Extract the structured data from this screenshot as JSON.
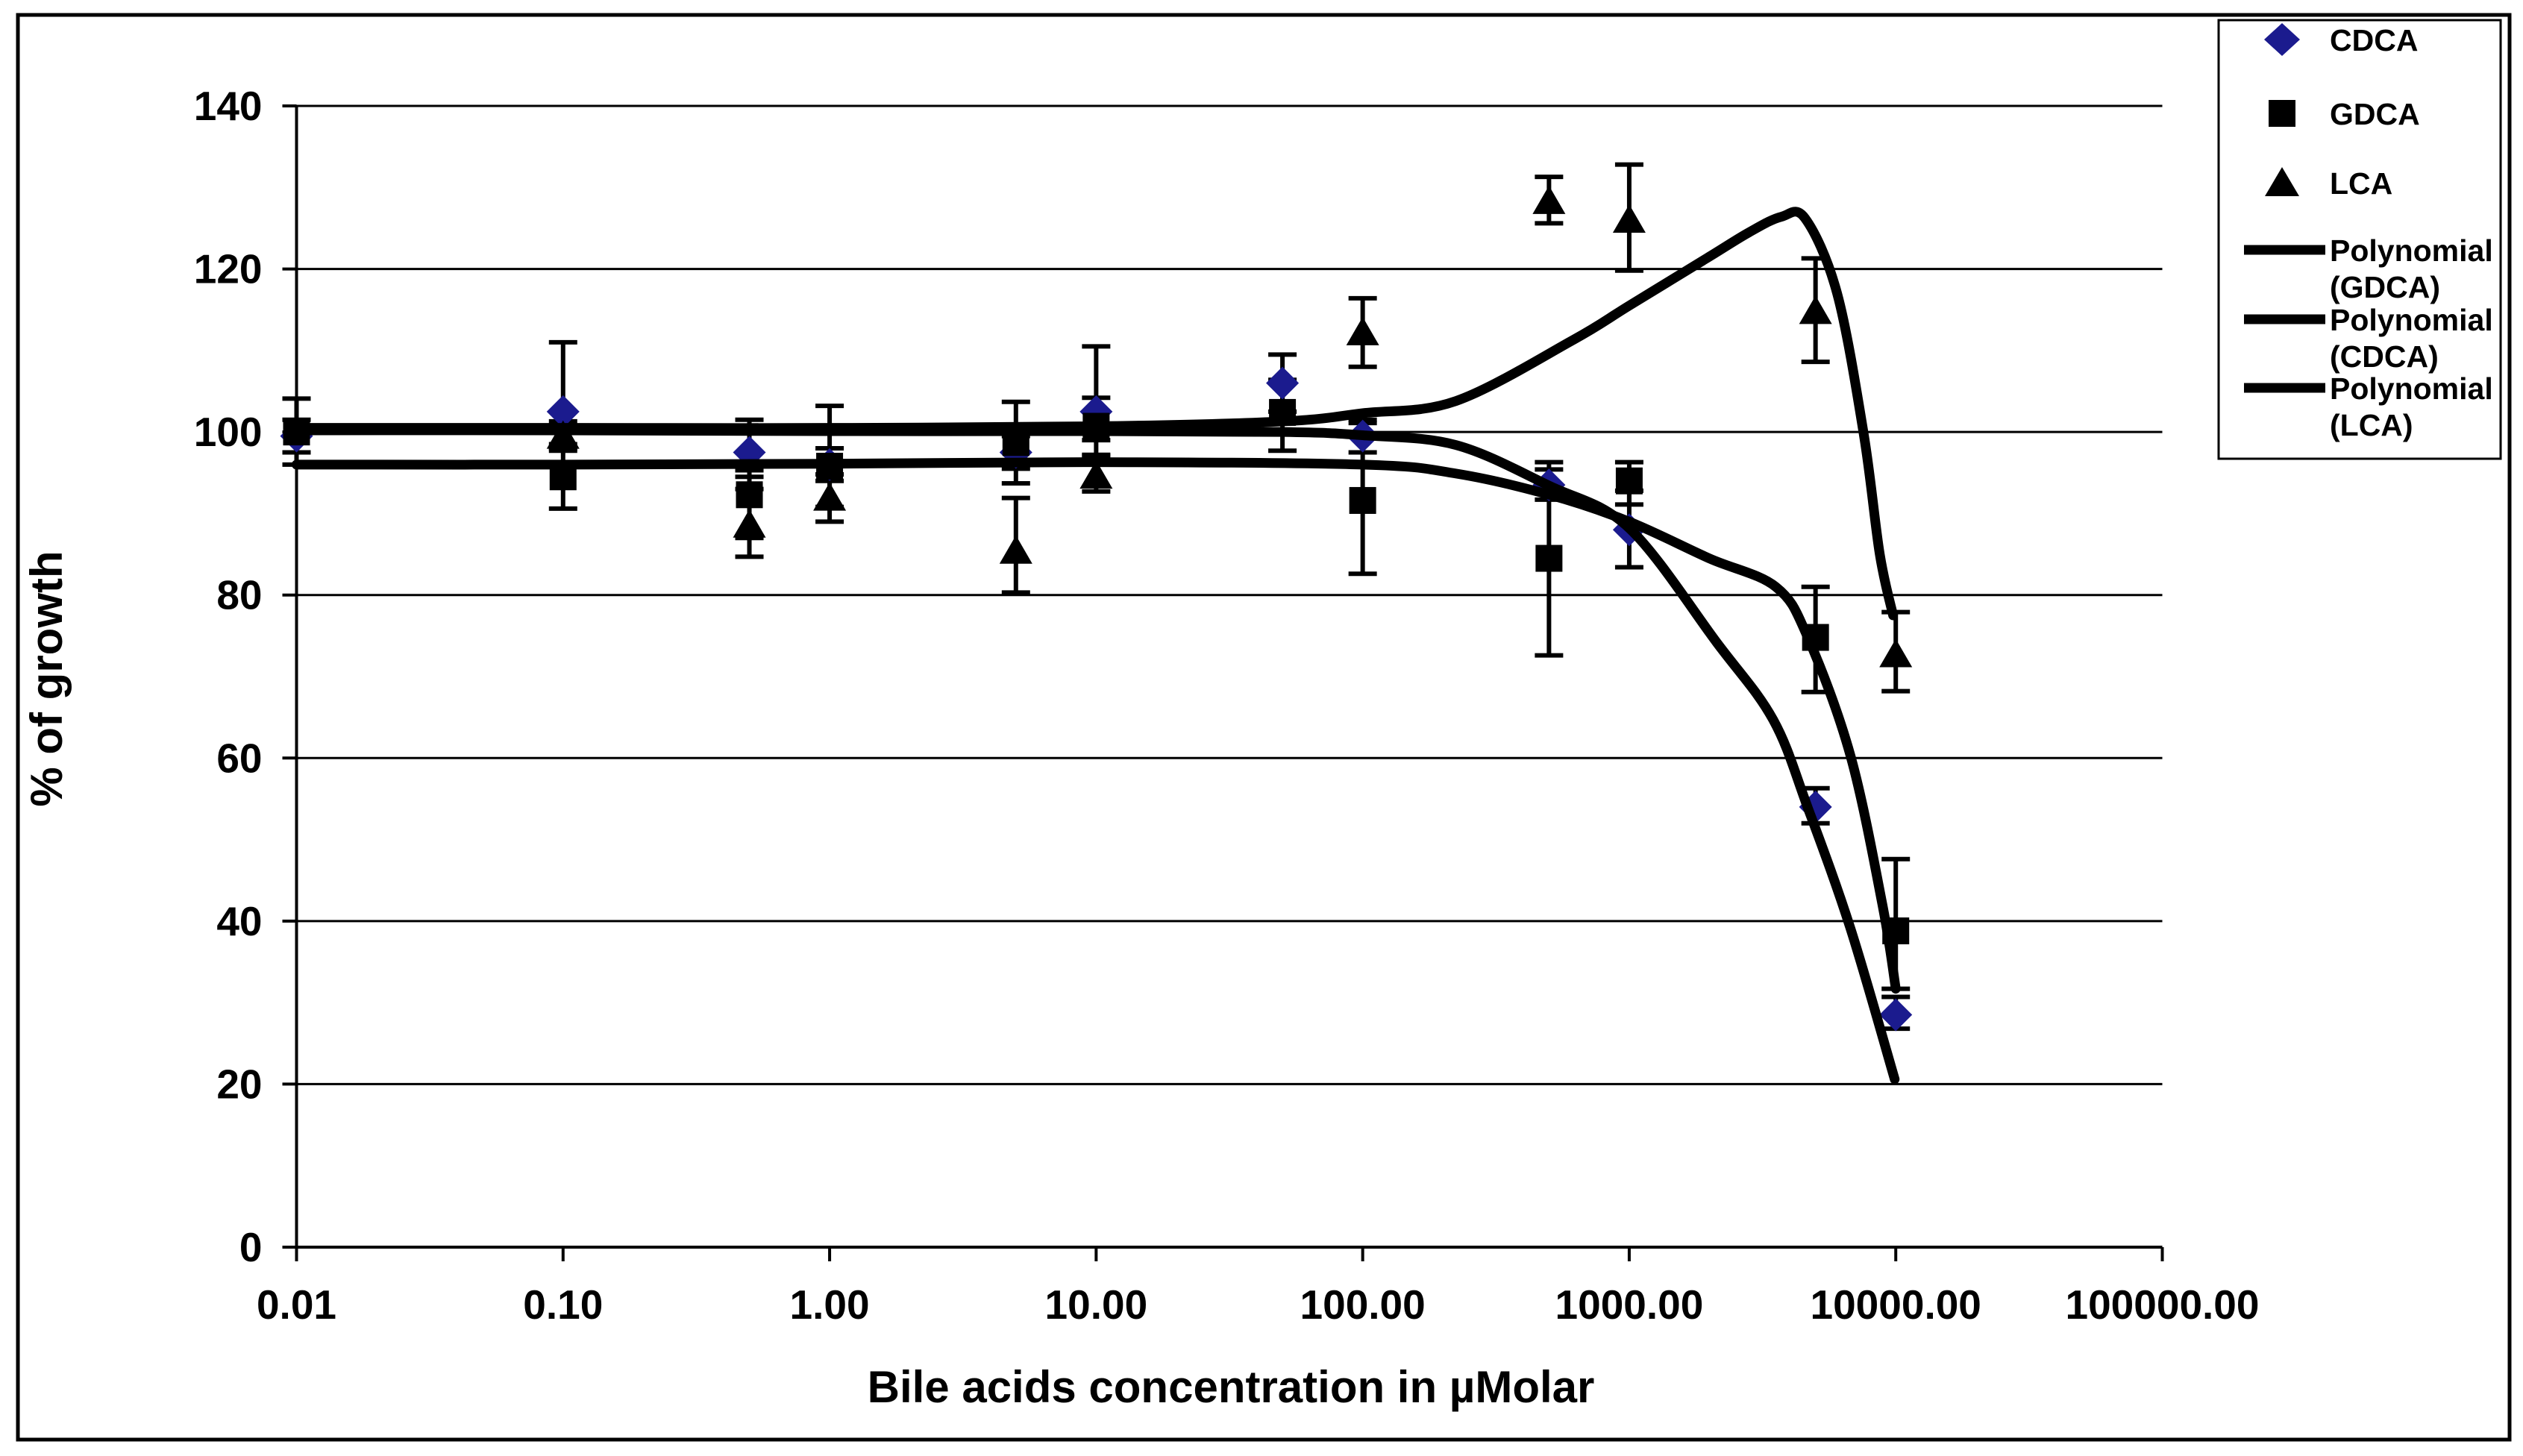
{
  "figure": {
    "background_color": "#ffffff",
    "border_color": "#000000",
    "accent_blue": "#1b1b8e"
  },
  "y_axis": {
    "title": "% of growth",
    "ticks": [
      0,
      20,
      40,
      60,
      80,
      100,
      120,
      140
    ],
    "min": 0,
    "max": 140
  },
  "x_axis": {
    "title": "Bile acids concentration  in µMolar",
    "tick_labels": [
      "0.01",
      "0.10",
      "1.00",
      "10.00",
      "100.00",
      "1000.00",
      "10000.00",
      "100000.00"
    ],
    "scale": "log",
    "log_min": -2,
    "log_max": 5
  },
  "legend": {
    "position": "top-right",
    "items": [
      {
        "label": "CDCA",
        "sublabel": "",
        "marker": "diamond",
        "color": "#1b1b8e"
      },
      {
        "label": "GDCA",
        "sublabel": "",
        "marker": "square",
        "color": "#000000"
      },
      {
        "label": "LCA",
        "sublabel": "",
        "marker": "triangle",
        "color": "#000000"
      },
      {
        "label": "Polynomial",
        "sublabel": "(GDCA)",
        "marker": "line",
        "color": "#000000"
      },
      {
        "label": "Polynomial",
        "sublabel": "(CDCA)",
        "marker": "line",
        "color": "#000000"
      },
      {
        "label": "Polynomial",
        "sublabel": "(LCA)",
        "marker": "line",
        "color": "#000000"
      }
    ]
  },
  "chart_data": {
    "type": "scatter",
    "title": "",
    "xlabel": "Bile acids concentration  in µMolar",
    "ylabel": "% of growth",
    "x_scale": "log",
    "xlim": [
      0.01,
      100000
    ],
    "ylim": [
      0,
      140
    ],
    "grid": "horizontal",
    "legend_position": "right",
    "series": [
      {
        "name": "CDCA",
        "marker": "diamond",
        "color": "#1b1b8e",
        "points_format": "[x_uM, pct_growth, err_up, err_down]",
        "points": [
          [
            0.01,
            99.5,
            2.0,
            2.0
          ],
          [
            0.1,
            102.5,
            8.5,
            4.0
          ],
          [
            0.5,
            97.5,
            4.0,
            3.0
          ],
          [
            1,
            96.0,
            2.0,
            2.0
          ],
          [
            5,
            97.5,
            2.0,
            2.0
          ],
          [
            10,
            102.5,
            8.0,
            3.5
          ],
          [
            50,
            106.0,
            3.5,
            3.5
          ],
          [
            100,
            99.5,
            2.0,
            2.0
          ],
          [
            500,
            93.5,
            2.8,
            1.8
          ],
          [
            1000,
            88.0,
            4.8,
            4.6
          ],
          [
            5000,
            54.0,
            2.3,
            2.0
          ],
          [
            10000,
            28.5,
            2.2,
            1.7
          ]
        ]
      },
      {
        "name": "GDCA",
        "marker": "square",
        "color": "#000000",
        "points_format": "[x_uM, pct_growth, err_up, err_down]",
        "points": [
          [
            0.01,
            100.0,
            4.1,
            4.0
          ],
          [
            0.1,
            94.5,
            3.5,
            3.9
          ],
          [
            0.5,
            92.3,
            3.0,
            5.3
          ],
          [
            1,
            95.8,
            7.4,
            5.0
          ],
          [
            5,
            98.7,
            5.0,
            5.0
          ],
          [
            10,
            100.7,
            3.5,
            3.5
          ],
          [
            50,
            102.4,
            4.0,
            4.7
          ],
          [
            100,
            91.6,
            9.5,
            9.0
          ],
          [
            500,
            84.5,
            10.9,
            11.9
          ],
          [
            1000,
            94.0,
            2.3,
            2.9
          ],
          [
            5000,
            74.8,
            6.2,
            6.7
          ],
          [
            10000,
            38.8,
            8.8,
            7.1
          ]
        ]
      },
      {
        "name": "LCA",
        "marker": "triangle",
        "color": "#000000",
        "points_format": "[x_uM, pct_growth, err_up, err_down]",
        "points": [
          [
            0.1,
            99.5,
            1.8,
            1.8
          ],
          [
            0.5,
            88.6,
            4.4,
            3.9
          ],
          [
            1,
            91.9,
            2.9,
            2.9
          ],
          [
            5,
            85.4,
            6.5,
            5.1
          ],
          [
            10,
            94.6,
            2.5,
            1.9
          ],
          [
            100,
            112.2,
            4.2,
            4.2
          ],
          [
            500,
            128.3,
            3.0,
            2.7
          ],
          [
            1000,
            126.0,
            6.8,
            6.2
          ],
          [
            5000,
            114.8,
            6.5,
            6.2
          ],
          [
            10000,
            72.7,
            5.2,
            4.5
          ]
        ]
      }
    ],
    "trendlines": [
      {
        "name": "Polynomial (GDCA)",
        "color": "#000000",
        "points_format": "[log10_x, pct_growth]",
        "points": [
          [
            -2,
            96
          ],
          [
            -1,
            96
          ],
          [
            0,
            96.1
          ],
          [
            1,
            96.3
          ],
          [
            2,
            96
          ],
          [
            2.35,
            94.9
          ],
          [
            2.7,
            92.3
          ],
          [
            3,
            89
          ],
          [
            3.3,
            84.5
          ],
          [
            3.55,
            81
          ],
          [
            3.67,
            74.8
          ],
          [
            3.83,
            60.3
          ],
          [
            3.95,
            42
          ],
          [
            4.0,
            31.7
          ]
        ]
      },
      {
        "name": "Polynomial (CDCA)",
        "color": "#000000",
        "points_format": "[log10_x, pct_growth]",
        "points": [
          [
            -2,
            100.2
          ],
          [
            -1,
            100.2
          ],
          [
            0,
            100.1
          ],
          [
            1,
            100.1
          ],
          [
            1.7,
            100
          ],
          [
            2,
            99.6
          ],
          [
            2.35,
            98.4
          ],
          [
            2.7,
            93.4
          ],
          [
            3,
            88.2
          ],
          [
            3.33,
            74.1
          ],
          [
            3.54,
            64.7
          ],
          [
            3.67,
            53.9
          ],
          [
            3.83,
            39.1
          ],
          [
            3.996,
            20.6
          ]
        ]
      },
      {
        "name": "Polynomial (LCA)",
        "color": "#000000",
        "points_format": "[log10_x, pct_growth]",
        "points": [
          [
            -2,
            100.5
          ],
          [
            -1,
            100.5
          ],
          [
            0,
            100.5
          ],
          [
            1,
            100.7
          ],
          [
            1.7,
            101.3
          ],
          [
            2,
            102.3
          ],
          [
            2.35,
            103.8
          ],
          [
            2.79,
            111.3
          ],
          [
            3,
            115.5
          ],
          [
            3.3,
            121.5
          ],
          [
            3.45,
            124.5
          ],
          [
            3.57,
            126.4
          ],
          [
            3.66,
            126.2
          ],
          [
            3.78,
            117
          ],
          [
            3.88,
            99.7
          ],
          [
            3.94,
            85
          ],
          [
            3.99,
            77.5
          ]
        ]
      }
    ]
  }
}
